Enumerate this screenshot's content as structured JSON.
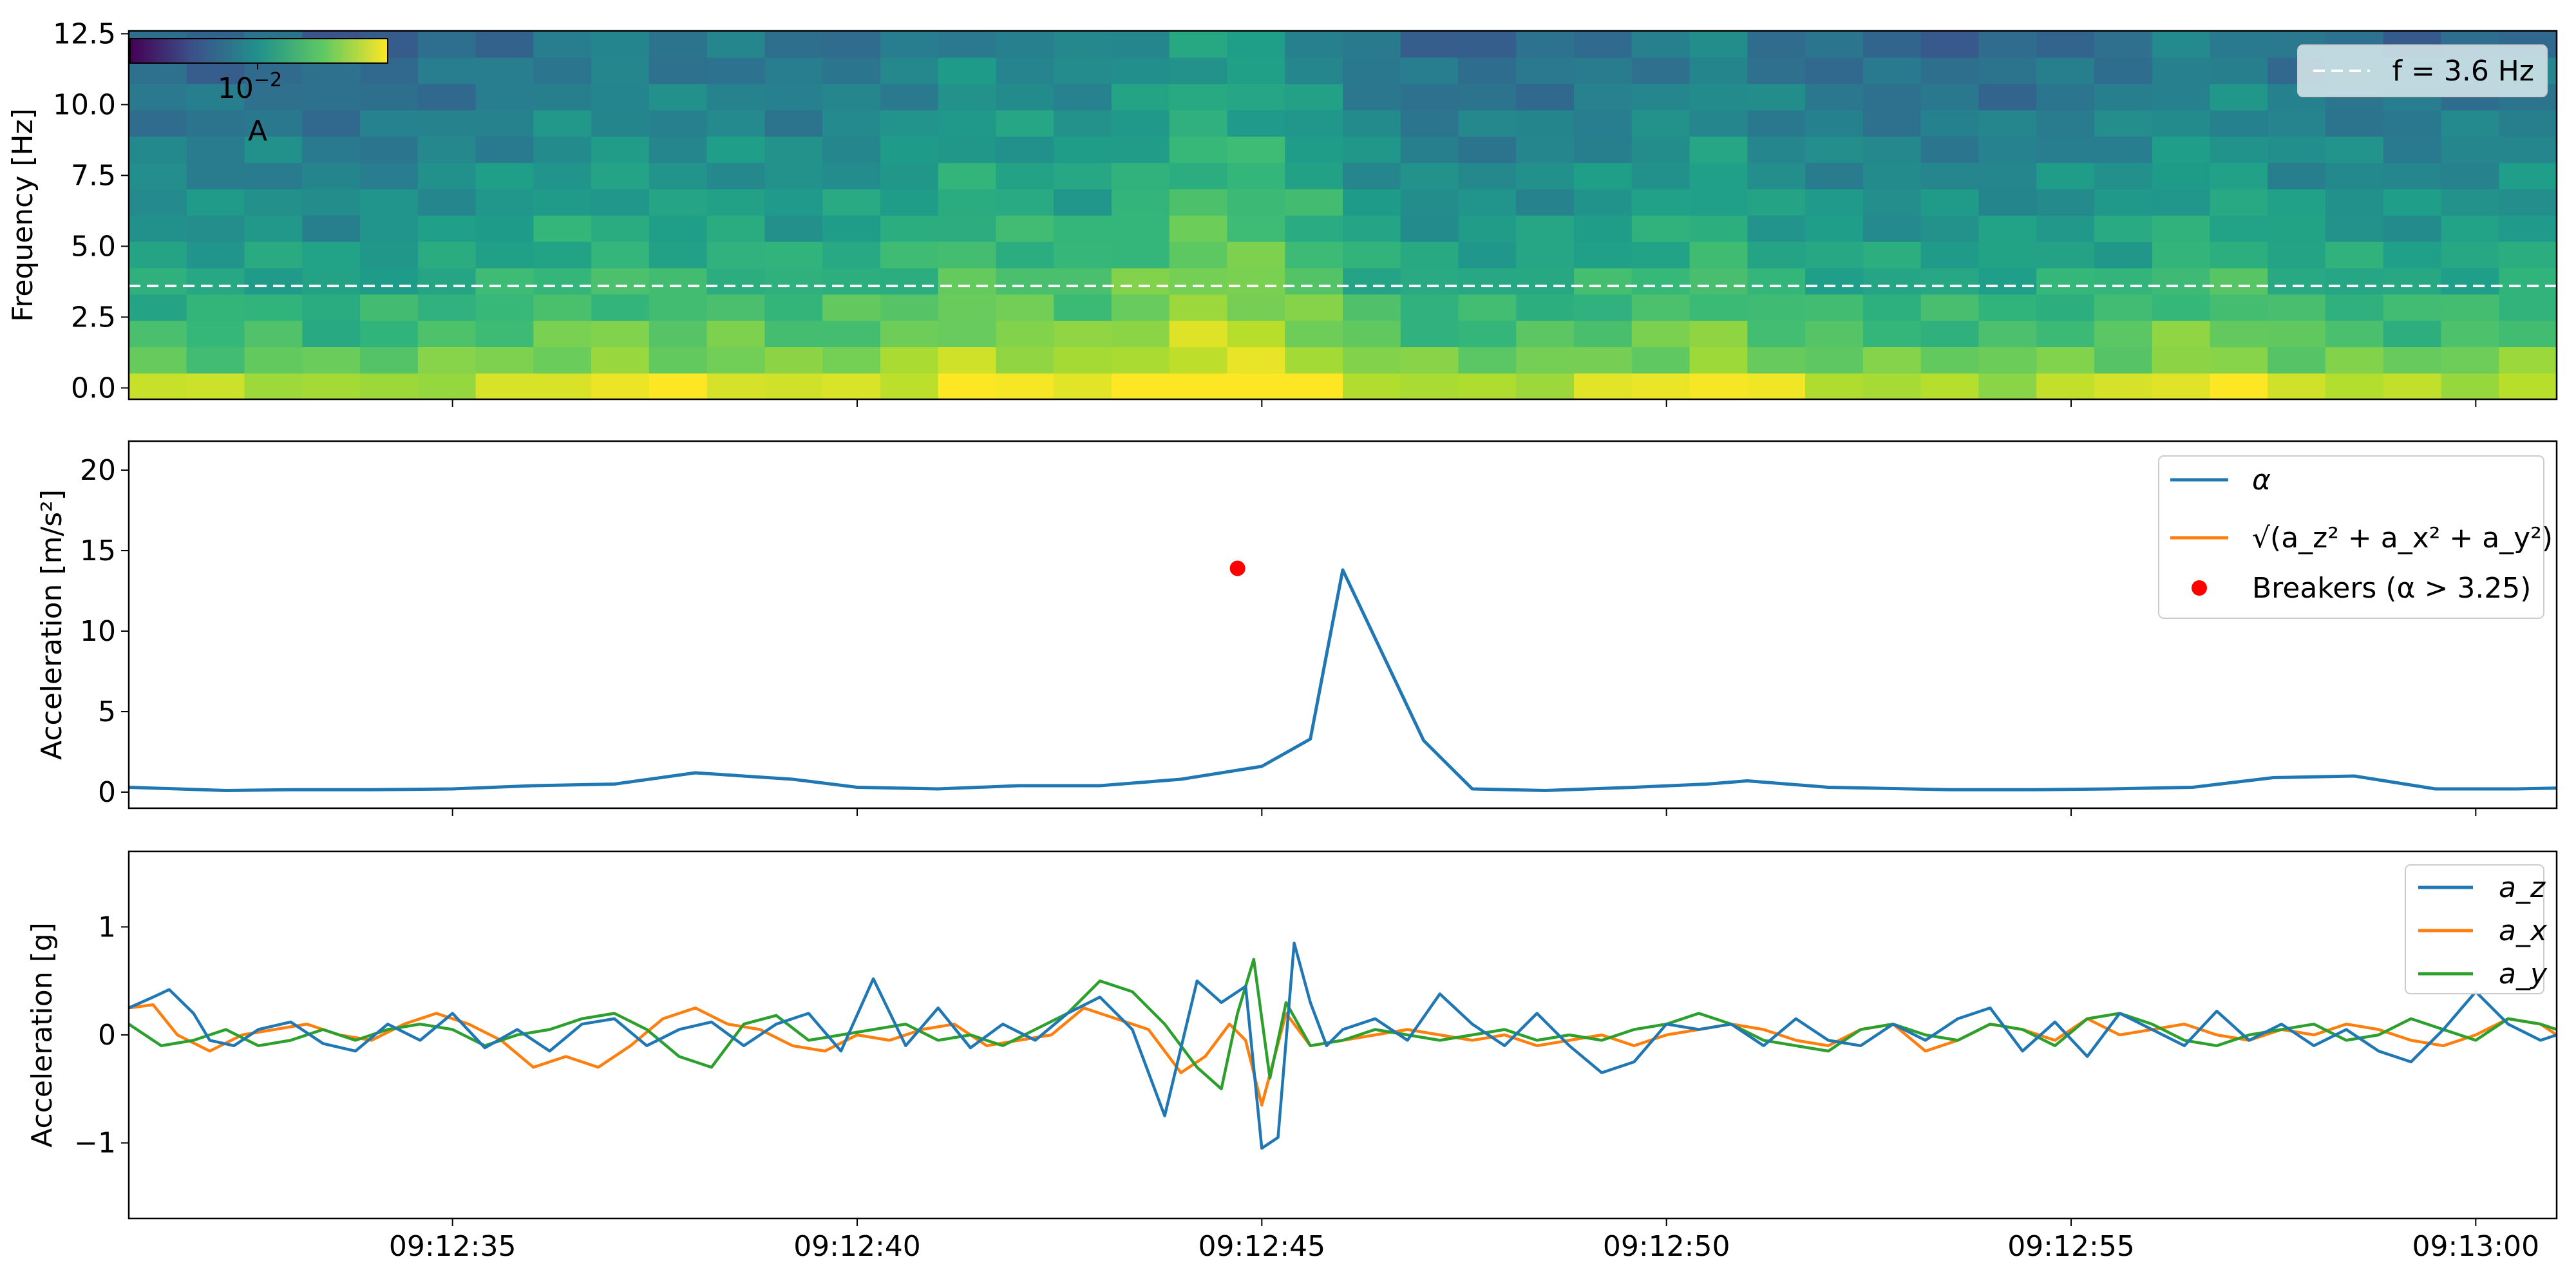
{
  "chart_data": [
    {
      "type": "heatmap",
      "ylabel": "Frequency [Hz]",
      "yticks": [
        "0.0",
        "2.5",
        "5.0",
        "7.5",
        "10.0",
        "12.5"
      ],
      "ylim": [
        -0.4,
        12.6
      ],
      "xlim": [
        0,
        30.0
      ],
      "colormap": "viridis",
      "colorbar": {
        "label": "A",
        "tick": "10",
        "tick_exp": "−2"
      },
      "column_energy": [
        0.3,
        0.25,
        0.3,
        0.2,
        0.25,
        0.35,
        0.4,
        0.5,
        0.55,
        0.45,
        0.5,
        0.4,
        0.45,
        0.55,
        0.7,
        0.65,
        0.6,
        0.75,
        0.95,
        0.9,
        0.7,
        0.45,
        0.3,
        0.3,
        0.35,
        0.4,
        0.5,
        0.6,
        0.4,
        0.35,
        0.3,
        0.3,
        0.3,
        0.35,
        0.4,
        0.55,
        0.55,
        0.4,
        0.35,
        0.3,
        0.35,
        0.4
      ],
      "reference_line": {
        "y": 3.6,
        "legend": "f = 3.6 Hz",
        "color": "#ffffff"
      }
    },
    {
      "type": "line",
      "ylabel": "Acceleration [m/s²]",
      "yticks": [
        "0",
        "5",
        "10",
        "15",
        "20"
      ],
      "ylim": [
        -1,
        21.8
      ],
      "xlim": [
        0,
        30.0
      ],
      "series": [
        {
          "name": "α",
          "color": "#1f77b4",
          "x": [
            0.0,
            1.2,
            2.0,
            3.0,
            4.0,
            5.0,
            6.0,
            7.0,
            8.2,
            9.0,
            10.0,
            11.0,
            12.0,
            13.0,
            14.0,
            14.6,
            15.0,
            16.0,
            16.6,
            17.5,
            18.6,
            19.5,
            20.0,
            21.0,
            22.0,
            22.5,
            23.5,
            24.5,
            25.5,
            26.5,
            27.5,
            28.5,
            29.5,
            30.0
          ],
          "y": [
            0.3,
            0.1,
            0.15,
            0.15,
            0.2,
            0.4,
            0.5,
            1.2,
            0.8,
            0.3,
            0.2,
            0.4,
            0.4,
            0.8,
            1.6,
            3.3,
            13.8,
            3.2,
            0.2,
            0.1,
            0.3,
            0.5,
            0.7,
            0.3,
            0.2,
            0.15,
            0.15,
            0.2,
            0.3,
            0.9,
            1.0,
            0.2,
            0.2,
            0.25
          ]
        },
        {
          "name": "√(a_z² + a_x² + a_y²)",
          "color": "#ff7f0e",
          "x": [],
          "y": []
        }
      ],
      "points": {
        "name": "Breakers (α > 3.25)",
        "color": "#ff0000",
        "x": [
          13.7
        ],
        "y": [
          13.9
        ]
      }
    },
    {
      "type": "line",
      "ylabel": "Acceleration [g]",
      "yticks": [
        "−1",
        "0",
        "1"
      ],
      "ylim": [
        -1.7,
        1.7
      ],
      "xlim": [
        0,
        30.0
      ],
      "xticks": [
        {
          "x": 4.0,
          "label": "09:12:35"
        },
        {
          "x": 9.0,
          "label": "09:12:40"
        },
        {
          "x": 14.0,
          "label": "09:12:45"
        },
        {
          "x": 19.0,
          "label": "09:12:50"
        },
        {
          "x": 24.0,
          "label": "09:12:55"
        },
        {
          "x": 29.0,
          "label": "09:13:00"
        }
      ],
      "series": [
        {
          "name": "a_z",
          "color": "#1f77b4",
          "x": [
            0.0,
            0.3,
            0.5,
            0.8,
            1.0,
            1.3,
            1.6,
            2.0,
            2.4,
            2.8,
            3.2,
            3.6,
            4.0,
            4.4,
            4.8,
            5.2,
            5.6,
            6.0,
            6.4,
            6.8,
            7.2,
            7.6,
            8.0,
            8.4,
            8.8,
            9.2,
            9.6,
            10.0,
            10.4,
            10.8,
            11.2,
            11.6,
            12.0,
            12.4,
            12.8,
            13.2,
            13.5,
            13.8,
            14.0,
            14.2,
            14.4,
            14.6,
            14.8,
            15.0,
            15.4,
            15.8,
            16.2,
            16.6,
            17.0,
            17.4,
            17.8,
            18.2,
            18.6,
            19.0,
            19.4,
            19.8,
            20.2,
            20.6,
            21.0,
            21.4,
            21.8,
            22.2,
            22.6,
            23.0,
            23.4,
            23.8,
            24.2,
            24.6,
            25.0,
            25.4,
            25.8,
            26.2,
            26.6,
            27.0,
            27.4,
            27.8,
            28.2,
            28.6,
            29.0,
            29.4,
            29.8,
            30.0
          ],
          "y": [
            0.25,
            0.35,
            0.42,
            0.2,
            -0.05,
            -0.1,
            0.05,
            0.12,
            -0.08,
            -0.15,
            0.1,
            -0.05,
            0.2,
            -0.12,
            0.05,
            -0.15,
            0.1,
            0.15,
            -0.1,
            0.05,
            0.12,
            -0.1,
            0.1,
            0.2,
            -0.15,
            0.52,
            -0.1,
            0.25,
            -0.12,
            0.1,
            -0.05,
            0.2,
            0.35,
            0.05,
            -0.75,
            0.5,
            0.3,
            0.45,
            -1.05,
            -0.95,
            0.85,
            0.3,
            -0.1,
            0.05,
            0.15,
            -0.05,
            0.38,
            0.1,
            -0.1,
            0.2,
            -0.1,
            -0.35,
            -0.25,
            0.1,
            0.05,
            0.1,
            -0.1,
            0.15,
            -0.05,
            -0.1,
            0.1,
            -0.05,
            0.15,
            0.25,
            -0.15,
            0.12,
            -0.2,
            0.2,
            0.05,
            -0.1,
            0.22,
            -0.05,
            0.1,
            -0.1,
            0.05,
            -0.15,
            -0.25,
            0.05,
            0.4,
            0.1,
            -0.05,
            0.0
          ]
        },
        {
          "name": "a_x",
          "color": "#ff7f0e",
          "x": [
            0.0,
            0.3,
            0.6,
            1.0,
            1.4,
            1.8,
            2.2,
            2.6,
            3.0,
            3.4,
            3.8,
            4.2,
            4.6,
            5.0,
            5.4,
            5.8,
            6.2,
            6.6,
            7.0,
            7.4,
            7.8,
            8.2,
            8.6,
            9.0,
            9.4,
            9.8,
            10.2,
            10.6,
            11.0,
            11.4,
            11.8,
            12.2,
            12.6,
            13.0,
            13.3,
            13.6,
            13.8,
            14.0,
            14.3,
            14.6,
            15.0,
            15.4,
            15.8,
            16.2,
            16.6,
            17.0,
            17.4,
            17.8,
            18.2,
            18.6,
            19.0,
            19.4,
            19.8,
            20.2,
            20.6,
            21.0,
            21.4,
            21.8,
            22.2,
            22.6,
            23.0,
            23.4,
            23.8,
            24.2,
            24.6,
            25.0,
            25.4,
            25.8,
            26.2,
            26.6,
            27.0,
            27.4,
            27.8,
            28.2,
            28.6,
            29.0,
            29.4,
            29.8,
            30.0
          ],
          "y": [
            0.25,
            0.28,
            0.0,
            -0.15,
            0.0,
            0.05,
            0.1,
            0.0,
            -0.05,
            0.1,
            0.2,
            0.1,
            -0.05,
            -0.3,
            -0.2,
            -0.3,
            -0.1,
            0.15,
            0.25,
            0.1,
            0.05,
            -0.1,
            -0.15,
            0.0,
            -0.05,
            0.05,
            0.1,
            -0.1,
            -0.05,
            0.0,
            0.25,
            0.15,
            0.05,
            -0.35,
            -0.2,
            0.1,
            -0.05,
            -0.65,
            0.2,
            -0.1,
            -0.05,
            0.0,
            0.05,
            0.0,
            -0.05,
            0.0,
            -0.1,
            -0.05,
            0.0,
            -0.1,
            0.0,
            0.05,
            0.1,
            0.05,
            -0.05,
            -0.1,
            0.05,
            0.1,
            -0.15,
            -0.05,
            0.1,
            0.05,
            -0.05,
            0.15,
            0.0,
            0.05,
            0.1,
            0.0,
            -0.05,
            0.05,
            0.0,
            0.1,
            0.05,
            -0.05,
            -0.1,
            0.0,
            0.15,
            0.1,
            0.0
          ]
        },
        {
          "name": "a_y",
          "color": "#2ca02c",
          "x": [
            0.0,
            0.4,
            0.8,
            1.2,
            1.6,
            2.0,
            2.4,
            2.8,
            3.2,
            3.6,
            4.0,
            4.4,
            4.8,
            5.2,
            5.6,
            6.0,
            6.4,
            6.8,
            7.2,
            7.6,
            8.0,
            8.4,
            8.8,
            9.2,
            9.6,
            10.0,
            10.4,
            10.8,
            11.2,
            11.6,
            12.0,
            12.4,
            12.8,
            13.2,
            13.5,
            13.7,
            13.9,
            14.1,
            14.3,
            14.6,
            15.0,
            15.4,
            15.8,
            16.2,
            16.6,
            17.0,
            17.4,
            17.8,
            18.2,
            18.6,
            19.0,
            19.4,
            19.8,
            20.2,
            20.6,
            21.0,
            21.4,
            21.8,
            22.2,
            22.6,
            23.0,
            23.4,
            23.8,
            24.2,
            24.6,
            25.0,
            25.4,
            25.8,
            26.2,
            26.6,
            27.0,
            27.4,
            27.8,
            28.2,
            28.6,
            29.0,
            29.4,
            29.8,
            30.0
          ],
          "y": [
            0.1,
            -0.1,
            -0.05,
            0.05,
            -0.1,
            -0.05,
            0.05,
            -0.05,
            0.05,
            0.1,
            0.05,
            -0.1,
            0.0,
            0.05,
            0.15,
            0.2,
            0.05,
            -0.2,
            -0.3,
            0.1,
            0.18,
            -0.05,
            0.0,
            0.05,
            0.1,
            -0.05,
            0.0,
            -0.1,
            0.05,
            0.2,
            0.5,
            0.4,
            0.1,
            -0.3,
            -0.5,
            0.2,
            0.7,
            -0.4,
            0.3,
            -0.1,
            -0.05,
            0.05,
            0.0,
            -0.05,
            0.0,
            0.05,
            -0.05,
            0.0,
            -0.05,
            0.05,
            0.1,
            0.2,
            0.1,
            -0.05,
            -0.1,
            -0.15,
            0.05,
            0.1,
            0.0,
            -0.05,
            0.1,
            0.05,
            -0.1,
            0.15,
            0.2,
            0.1,
            -0.05,
            -0.1,
            0.0,
            0.05,
            0.1,
            -0.05,
            0.0,
            0.15,
            0.05,
            -0.05,
            0.15,
            0.1,
            0.05
          ]
        }
      ]
    }
  ]
}
